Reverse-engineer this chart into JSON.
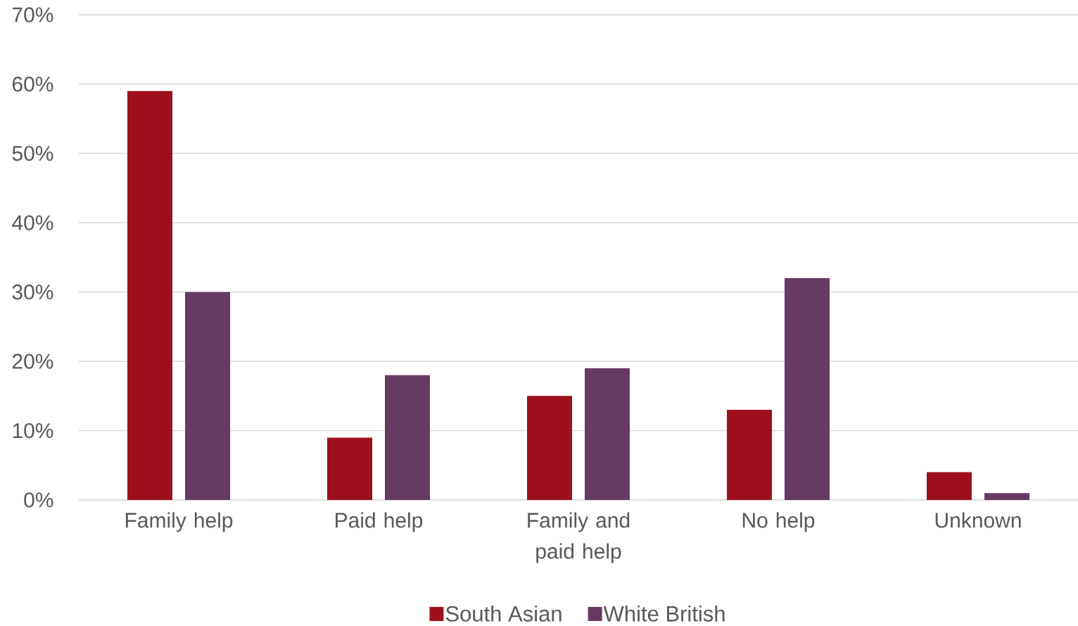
{
  "chart_data": {
    "type": "bar",
    "categories": [
      "Family help",
      "Paid help",
      "Family and paid help",
      "No help",
      "Unknown"
    ],
    "series": [
      {
        "name": "South Asian",
        "color": "#9e101e",
        "values": [
          59,
          9,
          15,
          13,
          4
        ]
      },
      {
        "name": "White British",
        "color": "#673a64",
        "values": [
          30,
          18,
          19,
          32,
          1
        ]
      }
    ],
    "ylim": [
      0,
      70
    ],
    "yticks": [
      {
        "value": 0,
        "label": "0%"
      },
      {
        "value": 10,
        "label": "10%"
      },
      {
        "value": 20,
        "label": "20%"
      },
      {
        "value": 30,
        "label": "30%"
      },
      {
        "value": 40,
        "label": "40%"
      },
      {
        "value": 50,
        "label": "50%"
      },
      {
        "value": 60,
        "label": "60%"
      },
      {
        "value": 70,
        "label": "70%"
      }
    ],
    "grid": "y",
    "legend": "bottom"
  }
}
